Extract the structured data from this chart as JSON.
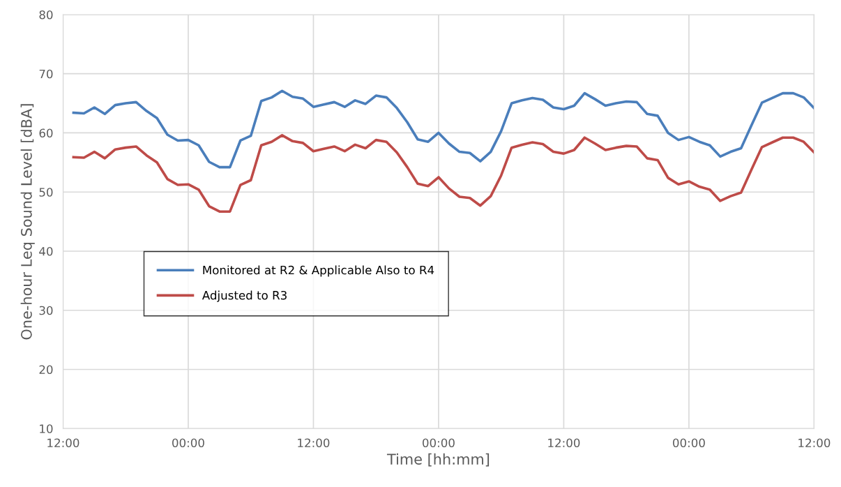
{
  "chart_data": {
    "type": "line",
    "xlabel": "Time [hh:mm]",
    "ylabel": "One-hour Leq Sound Level [dBA]",
    "categories": [
      "12:00",
      null,
      null,
      null,
      null,
      null,
      null,
      null,
      null,
      null,
      null,
      null,
      "00:00",
      null,
      null,
      null,
      null,
      null,
      null,
      null,
      null,
      null,
      null,
      null,
      "12:00",
      null,
      null,
      null,
      null,
      null,
      null,
      null,
      null,
      null,
      null,
      null,
      "00:00",
      null,
      null,
      null,
      null,
      null,
      null,
      null,
      null,
      null,
      null,
      null,
      "12:00",
      null,
      null,
      null,
      null,
      null,
      null,
      null,
      null,
      null,
      null,
      null,
      "00:00",
      null,
      null,
      null,
      null,
      null,
      null,
      null,
      null,
      null,
      null,
      null,
      "12:00"
    ],
    "series": [
      {
        "name": "Monitored at R2 & Applicable Also to R4",
        "color": "#4a7ebb",
        "values": [
          null,
          63.4,
          63.3,
          64.3,
          63.2,
          64.7,
          65.0,
          65.2,
          63.7,
          62.5,
          59.7,
          58.7,
          58.8,
          57.9,
          55.1,
          54.2,
          54.2,
          58.7,
          59.5,
          65.4,
          66.0,
          67.1,
          66.1,
          65.8,
          64.4,
          64.8,
          65.2,
          64.4,
          65.5,
          64.9,
          66.3,
          66.0,
          64.2,
          61.8,
          58.9,
          58.5,
          60.0,
          58.2,
          56.8,
          56.6,
          55.2,
          56.8,
          60.3,
          65.0,
          65.5,
          65.9,
          65.6,
          64.3,
          64.0,
          64.6,
          66.7,
          65.7,
          64.6,
          65.0,
          65.3,
          65.2,
          63.2,
          62.9,
          60.0,
          58.8,
          59.3,
          58.5,
          57.9,
          56.0,
          56.8,
          57.4,
          61.3,
          65.1,
          65.9,
          66.7,
          66.7,
          66.0,
          64.2
        ]
      },
      {
        "name": "Adjusted to R3",
        "color": "#be4b48",
        "values": [
          null,
          55.9,
          55.8,
          56.8,
          55.7,
          57.2,
          57.5,
          57.7,
          56.2,
          55.0,
          52.2,
          51.2,
          51.3,
          50.4,
          47.6,
          46.7,
          46.7,
          51.2,
          52.0,
          57.9,
          58.5,
          59.6,
          58.6,
          58.3,
          56.9,
          57.3,
          57.7,
          56.9,
          58.0,
          57.4,
          58.8,
          58.5,
          56.7,
          54.2,
          51.4,
          51.0,
          52.5,
          50.6,
          49.2,
          49.0,
          47.7,
          49.3,
          52.8,
          57.5,
          58.0,
          58.4,
          58.1,
          56.8,
          56.5,
          57.1,
          59.2,
          58.2,
          57.1,
          57.5,
          57.8,
          57.7,
          55.7,
          55.4,
          52.4,
          51.3,
          51.8,
          50.9,
          50.4,
          48.5,
          49.3,
          49.9,
          53.8,
          57.6,
          58.4,
          59.2,
          59.2,
          58.5,
          56.7
        ]
      }
    ],
    "ylim": [
      10,
      80
    ],
    "yticks": [
      10,
      20,
      30,
      40,
      50,
      60,
      70,
      80
    ],
    "grid": true,
    "legend": "center left",
    "marker": "none",
    "line_style": "solid"
  }
}
